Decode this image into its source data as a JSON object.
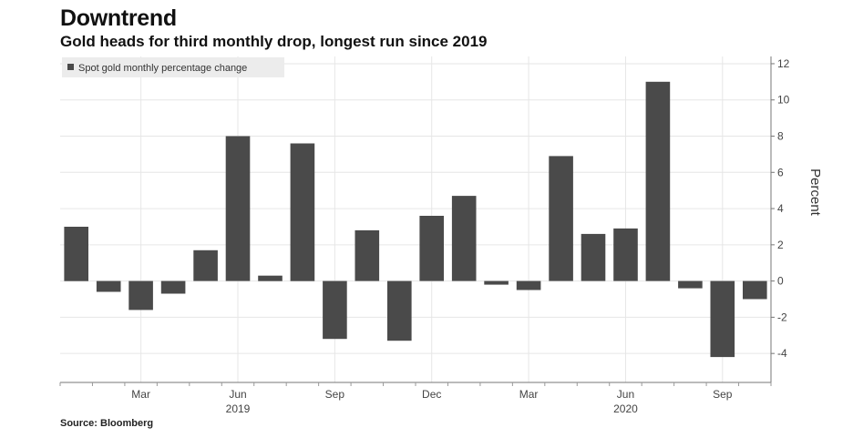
{
  "header": {
    "title": "Downtrend",
    "subtitle": "Gold heads for third monthly drop, longest run since 2019"
  },
  "source": "Source: Bloomberg",
  "colors": {
    "bar": "#4a4a4a",
    "grid": "#e6e6e6",
    "legend_bg": "#ececec"
  },
  "chart_data": {
    "type": "bar",
    "title": "Gold heads for third monthly drop, longest run since 2019",
    "ylabel": "Percent",
    "xlabel": "",
    "ylim": [
      -5.6,
      12.4
    ],
    "yticks": [
      12,
      10,
      8,
      6,
      4,
      2,
      0,
      -2,
      -4
    ],
    "legend": "Spot gold monthly percentage change",
    "legend_position": "top-left",
    "grid": true,
    "categories": [
      "Jan 2019",
      "Feb 2019",
      "Mar 2019",
      "Apr 2019",
      "May 2019",
      "Jun 2019",
      "Jul 2019",
      "Aug 2019",
      "Sep 2019",
      "Oct 2019",
      "Nov 2019",
      "Dec 2019",
      "Jan 2020",
      "Feb 2020",
      "Mar 2020",
      "Apr 2020",
      "May 2020",
      "Jun 2020",
      "Jul 2020",
      "Aug 2020",
      "Sep 2020",
      "Oct 2020"
    ],
    "values": [
      3.0,
      -0.6,
      -1.6,
      -0.7,
      1.7,
      8.0,
      0.3,
      7.6,
      -3.2,
      2.8,
      -3.3,
      3.6,
      4.7,
      -0.2,
      -0.5,
      6.9,
      2.6,
      2.9,
      11.0,
      -0.4,
      -4.2,
      -1.0
    ],
    "xtick_labels": [
      {
        "index": 2,
        "label": "Mar"
      },
      {
        "index": 5,
        "label": "Jun"
      },
      {
        "index": 8,
        "label": "Sep"
      },
      {
        "index": 11,
        "label": "Dec"
      },
      {
        "index": 14,
        "label": "Mar"
      },
      {
        "index": 17,
        "label": "Jun"
      },
      {
        "index": 20,
        "label": "Sep"
      }
    ],
    "year_labels": [
      {
        "index": 5,
        "label": "2019"
      },
      {
        "index": 17,
        "label": "2020"
      }
    ]
  }
}
